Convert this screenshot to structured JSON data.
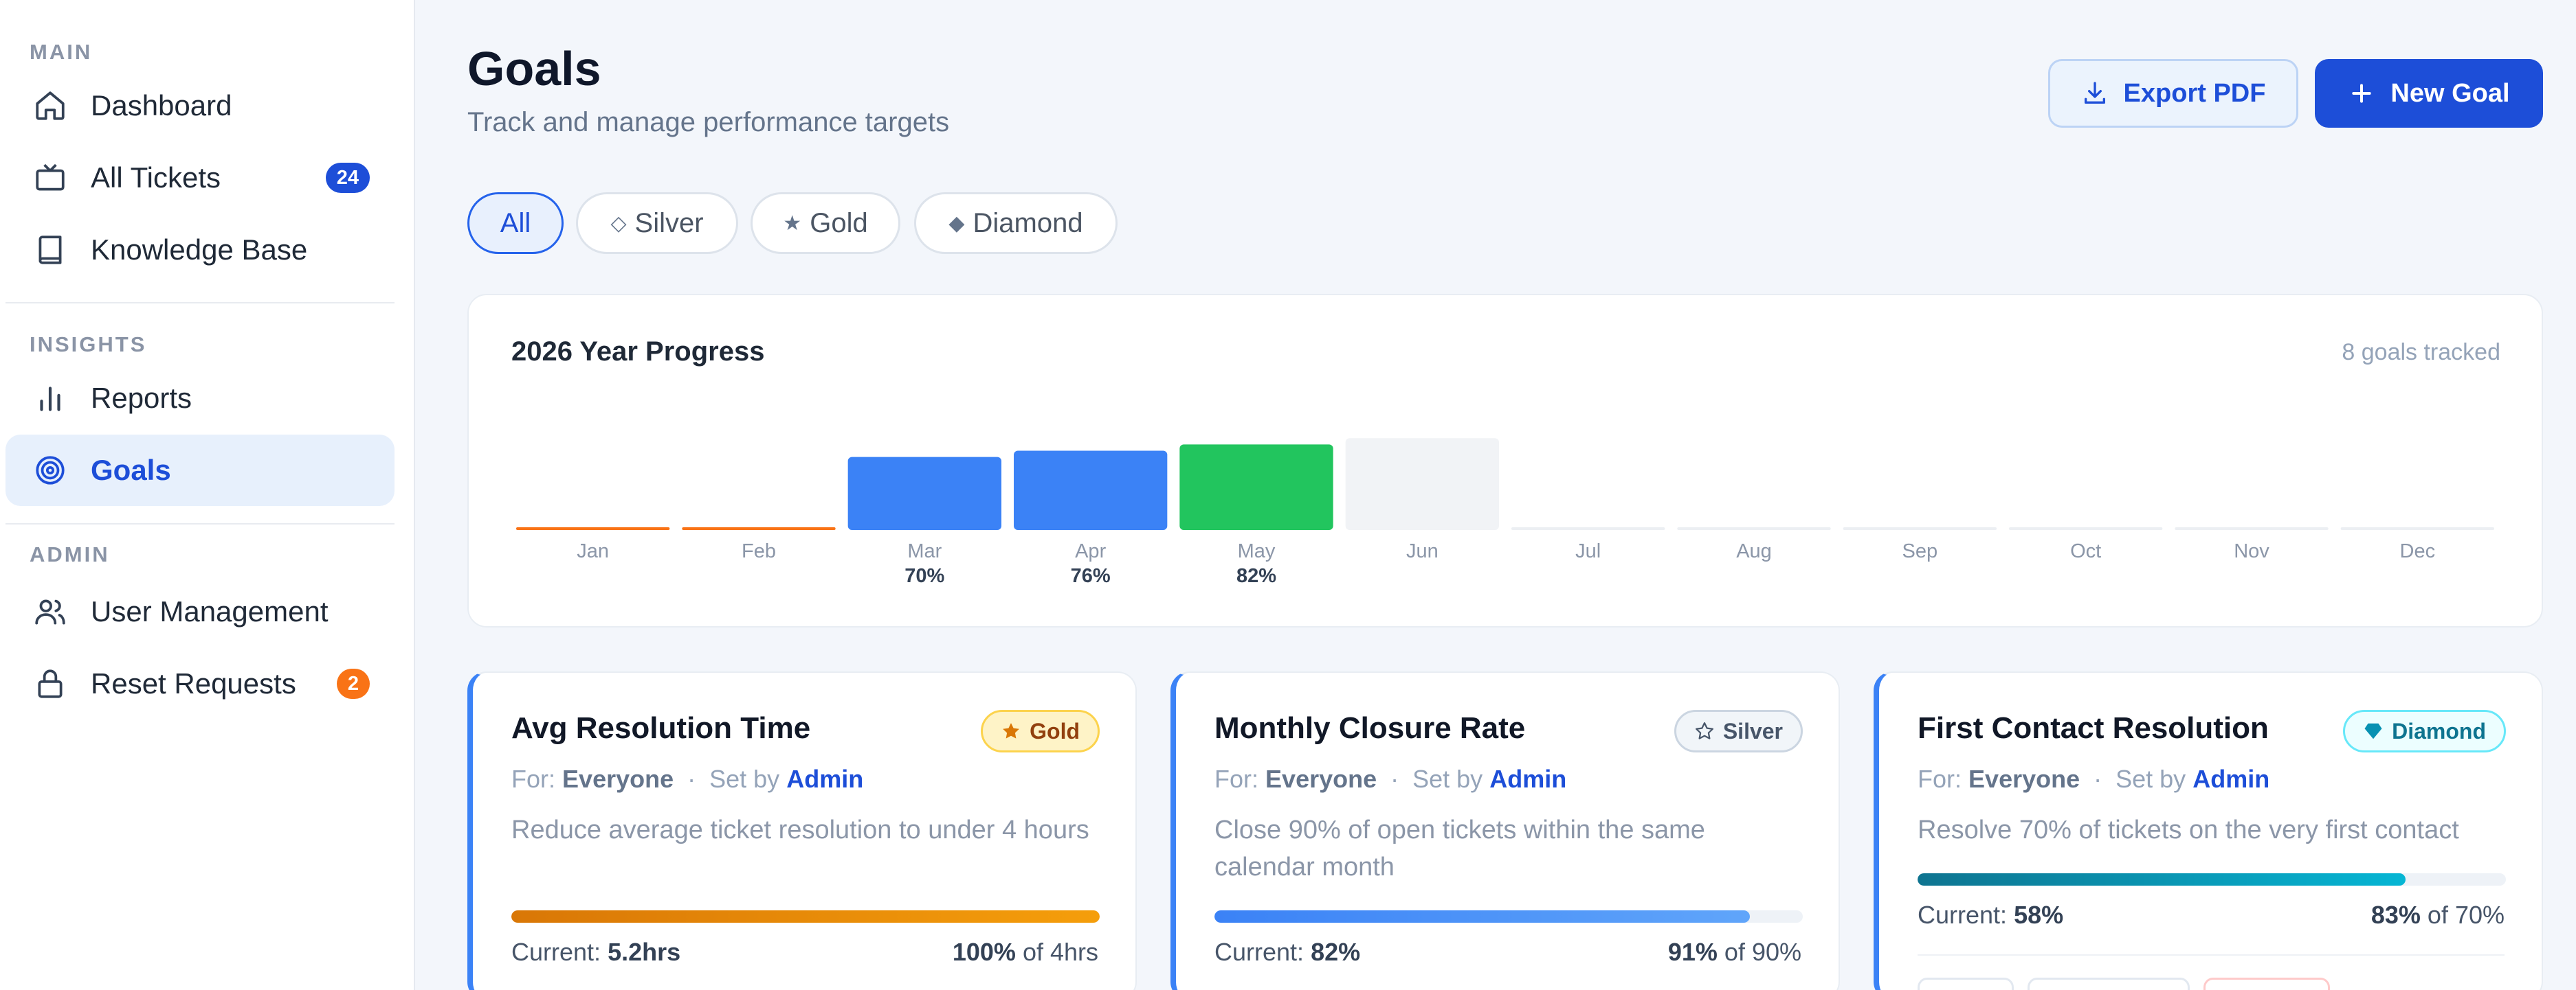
{
  "sidebar": {
    "sections": {
      "main": "MAIN",
      "insights": "INSIGHTS",
      "admin": "ADMIN"
    },
    "items": {
      "dashboard": {
        "label": "Dashboard",
        "icon": "home-icon"
      },
      "tickets": {
        "label": "All Tickets",
        "icon": "ticket-icon",
        "badge": "24",
        "badge_color": "#1d4ed8"
      },
      "kb": {
        "label": "Knowledge Base",
        "icon": "book-icon"
      },
      "reports": {
        "label": "Reports",
        "icon": "bar-chart-icon"
      },
      "goals": {
        "label": "Goals",
        "icon": "target-icon"
      },
      "users": {
        "label": "User Management",
        "icon": "users-icon"
      },
      "reset": {
        "label": "Reset Requests",
        "icon": "lock-icon",
        "badge": "2",
        "badge_color": "#f97316"
      }
    }
  },
  "header": {
    "title": "Goals",
    "subtitle": "Track and manage performance targets",
    "export_label": "Export PDF",
    "new_label": "New Goal"
  },
  "filters": [
    {
      "label": "All",
      "glyph": ""
    },
    {
      "label": "Silver",
      "glyph": "◇"
    },
    {
      "label": "Gold",
      "glyph": "★"
    },
    {
      "label": "Diamond",
      "glyph": "◆"
    }
  ],
  "progress": {
    "title": "2026 Year Progress",
    "count_text": "8 goals tracked"
  },
  "chart_data": {
    "type": "bar",
    "categories": [
      "Jan",
      "Feb",
      "Mar",
      "Apr",
      "May",
      "Jun",
      "Jul",
      "Aug",
      "Sep",
      "Oct",
      "Nov",
      "Dec"
    ],
    "values": [
      2,
      2,
      70,
      76,
      82,
      88,
      1,
      1,
      1,
      1,
      1,
      1
    ],
    "data_labels": [
      "",
      "",
      "70%",
      "76%",
      "82%",
      "",
      "",
      "",
      "",
      "",
      "",
      ""
    ],
    "colors": [
      "#f97316",
      "#f97316",
      "#3b82f6",
      "#3b82f6",
      "#22c55e",
      "#f1f3f6",
      "#eceff3",
      "#eceff3",
      "#eceff3",
      "#eceff3",
      "#eceff3",
      "#eceff3"
    ],
    "ylim": [
      0,
      100
    ],
    "grid": false
  },
  "goals": [
    {
      "title": "Avg Resolution Time",
      "badge": "Gold",
      "badge_icon": "star-icon",
      "badge_bg": "#fef3c7",
      "badge_border": "#fcd34d",
      "badge_color": "#92400e",
      "for_label": "For:",
      "for_value": "Everyone",
      "set_label": "Set by",
      "set_value": "Admin",
      "description": "Reduce average ticket resolution to under 4 hours",
      "progress": 1.0,
      "fill": "linear-gradient(90deg,#d97706,#f59e0b)",
      "current_label": "Current:",
      "current_value": "5.2hrs",
      "percent": "100%",
      "target": "of 4hrs"
    },
    {
      "title": "Monthly Closure Rate",
      "badge": "Silver",
      "badge_icon": "star-outline-icon",
      "badge_bg": "#f1f5f9",
      "badge_border": "#cbd5e1",
      "badge_color": "#475569",
      "for_label": "For:",
      "for_value": "Everyone",
      "set_label": "Set by",
      "set_value": "Admin",
      "description": "Close 90% of open tickets within the same calendar month",
      "progress": 0.91,
      "fill": "linear-gradient(90deg,#3b82f6,#60a5fa)",
      "current_label": "Current:",
      "current_value": "82%",
      "percent": "91%",
      "target": "of 90%"
    },
    {
      "title": "First Contact Resolution",
      "badge": "Diamond",
      "badge_icon": "diamond-icon",
      "badge_bg": "#ecfeff",
      "badge_border": "#67e8f9",
      "badge_color": "#0e7490",
      "for_label": "For:",
      "for_value": "Everyone",
      "set_label": "Set by",
      "set_value": "Admin",
      "description": "Resolve 70% of tickets on the very first contact",
      "progress": 0.83,
      "fill": "linear-gradient(90deg,#0e7490,#06b6d4)",
      "current_label": "Current:",
      "current_value": "58%",
      "percent": "83%",
      "target": "of 70%"
    }
  ]
}
